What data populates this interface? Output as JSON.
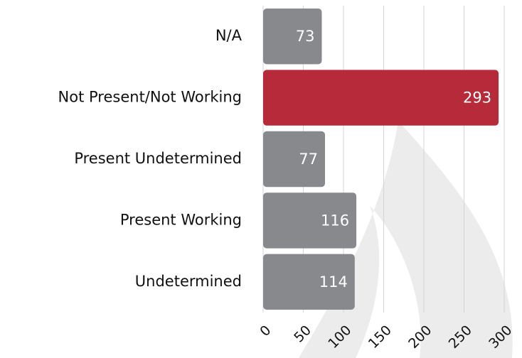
{
  "chart_data": {
    "type": "hbar",
    "categories": [
      "N/A",
      "Not Present/Not Working",
      "Present Undetermined",
      "Present Working",
      "Undetermined"
    ],
    "values": [
      73,
      293,
      77,
      116,
      114
    ],
    "colors": [
      "#88898c",
      "#b72a3a",
      "#88898c",
      "#88898c",
      "#88898c"
    ],
    "xlim": [
      0,
      300
    ],
    "xticks": [
      0,
      50,
      100,
      150,
      200,
      250,
      300
    ],
    "grid": true
  }
}
